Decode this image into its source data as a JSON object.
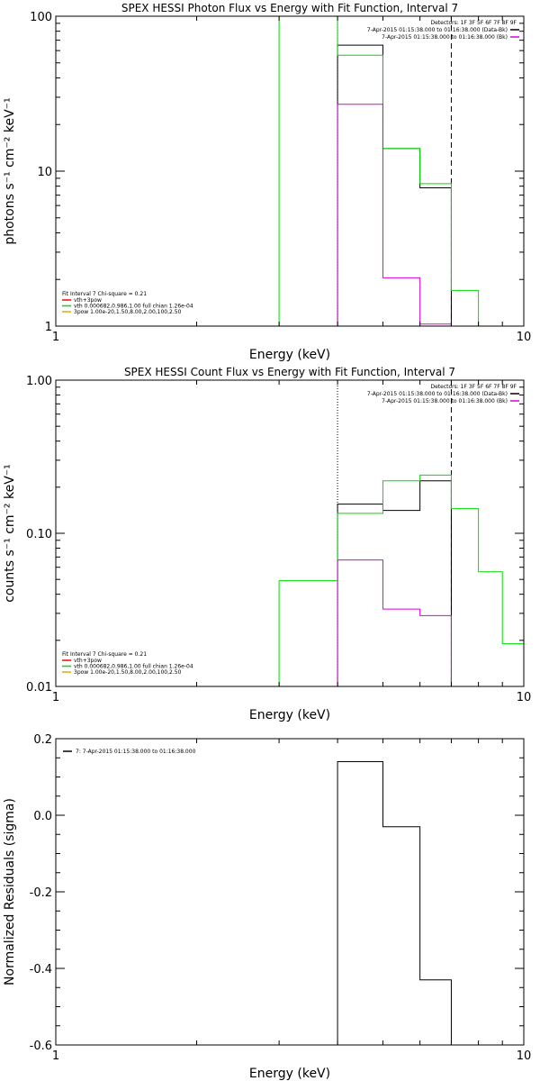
{
  "colors": {
    "black": "#000000",
    "green": "#00dd00",
    "magenta": "#dd00dd",
    "red": "#ff0000",
    "orange": "#e6a800"
  },
  "chart_data": [
    {
      "type": "line",
      "step": true,
      "title": "SPEX HESSI Photon Flux vs Energy with Fit Function, Interval 7",
      "xlabel": "Energy (keV)",
      "ylabel": "photons s⁻¹ cm⁻² keV⁻¹",
      "xscale": "log",
      "yscale": "log",
      "xlim": [
        1,
        10
      ],
      "ylim": [
        1,
        100
      ],
      "xticks": [
        {
          "v": 1,
          "label": "1"
        },
        {
          "v": 10,
          "label": "10"
        }
      ],
      "yticks": [
        {
          "v": 1,
          "label": "1"
        },
        {
          "v": 10,
          "label": "10"
        },
        {
          "v": 100,
          "label": "100"
        }
      ],
      "vlines": [
        {
          "x": 4.0,
          "style": "dotted"
        },
        {
          "x": 7.0,
          "style": "dashed"
        }
      ],
      "legend_top": {
        "placement": "top-right",
        "detectors": "Detectors: 1F 3F 5F 6F 7F 8F 9F",
        "entries": [
          {
            "text": "7-Apr-2015 01:15:38.000 to 01:16:38.000 (Data-Bk)",
            "color": "black"
          },
          {
            "text": "7-Apr-2015 01:15:38.000 to 01:16:38.000 (Bk)",
            "color": "magenta"
          }
        ]
      },
      "legend_bottom": {
        "placement": "bottom-left",
        "header": "Fit Interval 7   Chi-square = 0.21",
        "entries": [
          {
            "text": "vth+3pow",
            "color": "red"
          },
          {
            "text": "vth 0.000682,0.986,1.00  full chian 1.26e-04",
            "color": "green"
          },
          {
            "text": "3pow 1.00e-20,1.50,8.00,2.00,100,2.50",
            "color": "orange"
          }
        ]
      },
      "series": [
        {
          "color": "black",
          "edges": [
            4.0,
            5.0,
            6.0,
            7.0
          ],
          "values": [
            65,
            14,
            7.8
          ]
        },
        {
          "color": "green",
          "edges": [
            3.0,
            4.0,
            5.0,
            6.0,
            7.0,
            8.0
          ],
          "values": [
            120,
            56,
            14,
            8.3,
            1.7
          ]
        },
        {
          "color": "magenta",
          "edges": [
            4.0,
            5.0,
            6.0,
            7.0
          ],
          "values": [
            27,
            2.05,
            1.03
          ]
        }
      ]
    },
    {
      "type": "line",
      "step": true,
      "title": "SPEX HESSI Count Flux vs Energy with Fit Function, Interval 7",
      "xlabel": "Energy (keV)",
      "ylabel": "counts s⁻¹ cm⁻² keV⁻¹",
      "xscale": "log",
      "yscale": "log",
      "xlim": [
        1,
        10
      ],
      "ylim": [
        0.01,
        1.0
      ],
      "xticks": [
        {
          "v": 1,
          "label": "1"
        },
        {
          "v": 10,
          "label": "10"
        }
      ],
      "yticks": [
        {
          "v": 0.01,
          "label": "0.01"
        },
        {
          "v": 0.1,
          "label": "0.10"
        },
        {
          "v": 1,
          "label": "1.00"
        }
      ],
      "vlines": [
        {
          "x": 4.0,
          "style": "dotted"
        },
        {
          "x": 7.0,
          "style": "dashed"
        }
      ],
      "legend_top": {
        "placement": "top-right",
        "detectors": "Detectors: 1F 3F 5F 6F 7F 8F 9F",
        "entries": [
          {
            "text": "7-Apr-2015 01:15:38.000 to 01:16:38.000 (Data-Bk)",
            "color": "black"
          },
          {
            "text": "7-Apr-2015 01:15:38.000 to 01:16:38.000 (Bk)",
            "color": "magenta"
          }
        ]
      },
      "legend_bottom": {
        "placement": "bottom-left",
        "header": "Fit Interval 7   Chi-square = 0.21",
        "entries": [
          {
            "text": "vth+3pow",
            "color": "red"
          },
          {
            "text": "vth 0.000682,0.986,1.00  full chian 1.26e-04",
            "color": "green"
          },
          {
            "text": "3pow 1.00e-20,1.50,8.00,2.00,100,2.50",
            "color": "orange"
          }
        ]
      },
      "series": [
        {
          "color": "black",
          "edges": [
            4.0,
            5.0,
            6.0,
            7.0
          ],
          "values": [
            0.155,
            0.141,
            0.22
          ],
          "drop_to": 0.01
        },
        {
          "color": "green",
          "edges": [
            3.0,
            4.0,
            5.0,
            6.0,
            7.0,
            8.0,
            9.0,
            10.0
          ],
          "values": [
            0.049,
            0.135,
            0.22,
            0.24,
            0.145,
            0.056,
            0.019
          ]
        },
        {
          "color": "magenta",
          "edges": [
            4.0,
            5.0,
            6.0,
            7.0
          ],
          "values": [
            0.067,
            0.032,
            0.029
          ]
        }
      ]
    },
    {
      "type": "line",
      "step": true,
      "title": "",
      "xlabel": "Energy (keV)",
      "ylabel": "Normalized Residuals (sigma)",
      "xscale": "log",
      "yscale": "linear",
      "xlim": [
        1,
        10
      ],
      "ylim": [
        -0.6,
        0.2
      ],
      "xticks": [
        {
          "v": 1,
          "label": "1"
        },
        {
          "v": 10,
          "label": "10"
        }
      ],
      "yticks": [
        {
          "v": -0.6,
          "label": "-0.6"
        },
        {
          "v": -0.4,
          "label": "-0.4"
        },
        {
          "v": -0.2,
          "label": "-0.2"
        },
        {
          "v": 0.0,
          "label": "0.0"
        },
        {
          "v": 0.2,
          "label": "0.2"
        }
      ],
      "vlines": [],
      "legend_top": {
        "placement": "top-left",
        "detectors": "",
        "entries": [
          {
            "text": "7:  7-Apr-2015 01:15:38.000 to 01:16:38.000",
            "color": "black"
          }
        ]
      },
      "series": [
        {
          "color": "black",
          "edges": [
            4.0,
            5.0,
            6.0,
            7.0
          ],
          "values": [
            0.14,
            -0.03,
            -0.43
          ],
          "drop_to": -0.6
        }
      ]
    }
  ]
}
